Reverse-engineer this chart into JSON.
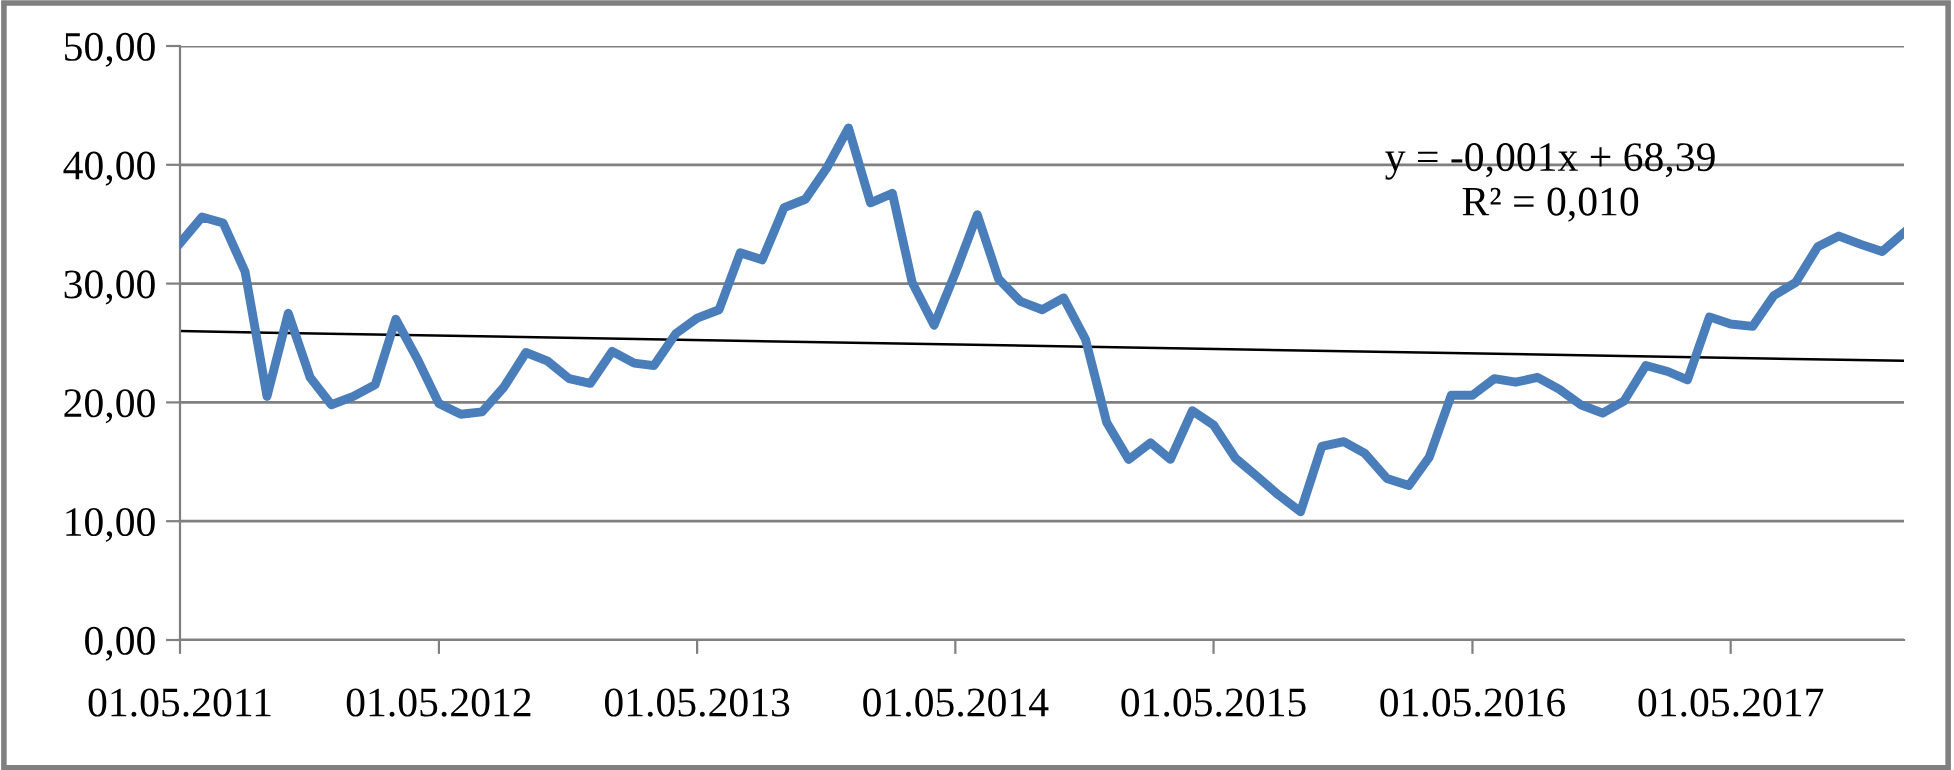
{
  "chart_data": {
    "type": "line",
    "x": [
      "2011-05",
      "2011-06",
      "2011-07",
      "2011-08",
      "2011-09",
      "2011-10",
      "2011-11",
      "2011-12",
      "2012-01",
      "2012-02",
      "2012-03",
      "2012-04",
      "2012-05",
      "2012-06",
      "2012-07",
      "2012-08",
      "2012-09",
      "2012-10",
      "2012-11",
      "2012-12",
      "2013-01",
      "2013-02",
      "2013-03",
      "2013-04",
      "2013-05",
      "2013-06",
      "2013-07",
      "2013-08",
      "2013-09",
      "2013-10",
      "2013-11",
      "2013-12",
      "2014-01",
      "2014-02",
      "2014-03",
      "2014-04",
      "2014-05",
      "2014-06",
      "2014-07",
      "2014-08",
      "2014-09",
      "2014-10",
      "2014-11",
      "2014-12",
      "2015-01",
      "2015-02",
      "2015-03",
      "2015-04",
      "2015-05",
      "2015-06",
      "2015-07",
      "2015-08",
      "2015-09",
      "2015-10",
      "2015-11",
      "2015-12",
      "2016-01",
      "2016-02",
      "2016-03",
      "2016-04",
      "2016-05",
      "2016-06",
      "2016-07",
      "2016-08",
      "2016-09",
      "2016-10",
      "2016-11",
      "2016-12",
      "2017-01",
      "2017-02",
      "2017-03",
      "2017-04",
      "2017-05",
      "2017-06",
      "2017-07",
      "2017-08",
      "2017-09",
      "2017-10",
      "2017-11",
      "2017-12",
      "2018-01"
    ],
    "series": [
      {
        "color": "#4a7ebb",
        "values": [
          33.4,
          35.6,
          35.1,
          31.0,
          20.5,
          27.5,
          22.1,
          19.8,
          20.5,
          21.5,
          27.0,
          23.6,
          19.9,
          19.0,
          19.2,
          21.3,
          24.2,
          23.5,
          22.0,
          21.6,
          24.3,
          23.3,
          23.1,
          25.8,
          27.1,
          27.8,
          32.6,
          32.0,
          36.4,
          37.1,
          39.8,
          43.1,
          36.8,
          37.6,
          30.1,
          26.5,
          30.9,
          35.8,
          30.4,
          28.5,
          27.8,
          28.8,
          25.3,
          18.3,
          15.2,
          16.6,
          15.2,
          19.3,
          18.1,
          15.3,
          13.8,
          12.2,
          10.8,
          16.3,
          16.7,
          15.7,
          13.6,
          13.0,
          15.4,
          20.6,
          20.6,
          22.0,
          21.7,
          22.1,
          21.1,
          19.8,
          19.1,
          20.1,
          23.1,
          22.6,
          21.9,
          27.2,
          26.6,
          26.4,
          29.0,
          30.1,
          33.1,
          34.0,
          33.3,
          32.7,
          34.3
        ]
      },
      {
        "color": "#000000",
        "x": [
          "2011-05",
          "2018-01"
        ],
        "values": [
          26.0,
          23.5
        ]
      }
    ],
    "annotations": [
      "y = -0,001x + 68,39",
      "R² = 0,010"
    ],
    "xlim": [
      "2011-05",
      "2018-01"
    ],
    "xticks": [
      {
        "value": "2011-05-01",
        "label": "01.05.2011"
      },
      {
        "value": "2012-05-01",
        "label": "01.05.2012"
      },
      {
        "value": "2013-05-01",
        "label": "01.05.2013"
      },
      {
        "value": "2014-05-01",
        "label": "01.05.2014"
      },
      {
        "value": "2015-05-01",
        "label": "01.05.2015"
      },
      {
        "value": "2016-05-01",
        "label": "01.05.2016"
      },
      {
        "value": "2017-05-01",
        "label": "01.05.2017"
      }
    ],
    "ylim": [
      0,
      50
    ],
    "yticks": [
      {
        "value": 0,
        "label": "0,00"
      },
      {
        "value": 10,
        "label": "10,00"
      },
      {
        "value": 20,
        "label": "20,00"
      },
      {
        "value": 30,
        "label": "30,00"
      },
      {
        "value": 40,
        "label": "40,00"
      },
      {
        "value": 50,
        "label": "50,00"
      }
    ],
    "grid": "y",
    "marker": "none",
    "line_style": "solid"
  }
}
